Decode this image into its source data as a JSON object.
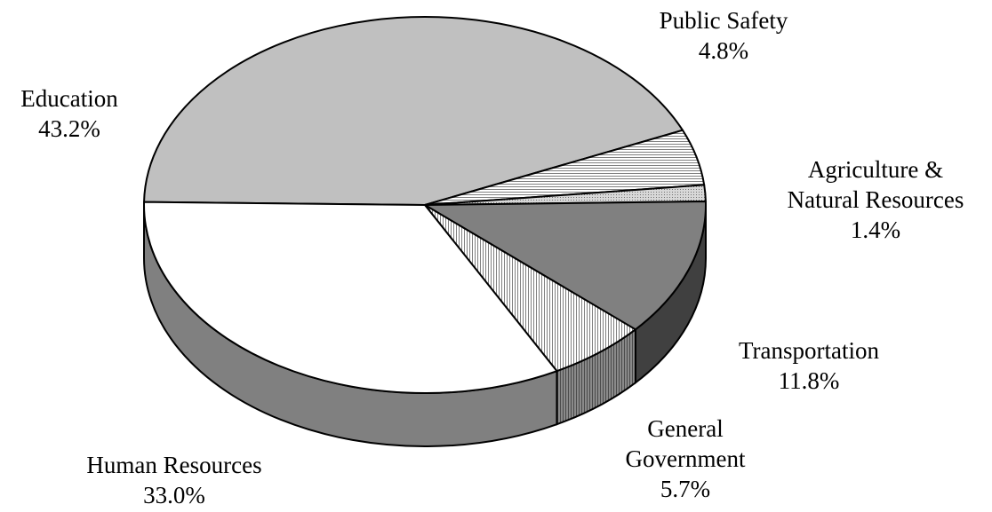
{
  "chart_data": {
    "type": "pie",
    "title": "",
    "three_d": true,
    "slices": [
      {
        "name": "Education",
        "value": 43.2,
        "label": "43.2%",
        "label_lines": [
          "Education",
          "43.2%"
        ],
        "fill": "#c0c0c0",
        "pattern": "solid"
      },
      {
        "name": "Public Safety",
        "value": 4.8,
        "label": "4.8%",
        "label_lines": [
          "Public Safety",
          "4.8%"
        ],
        "fill": "#ffffff",
        "pattern": "horizontal-lines"
      },
      {
        "name": "Agriculture & Natural Resources",
        "value": 1.4,
        "label": "1.4%",
        "label_lines": [
          "Agriculture &",
          "Natural Resources",
          "1.4%"
        ],
        "fill": "#d0d0d0",
        "pattern": "dots"
      },
      {
        "name": "Transportation",
        "value": 11.8,
        "label": "11.8%",
        "label_lines": [
          "Transportation",
          "11.8%"
        ],
        "fill": "#808080",
        "pattern": "solid"
      },
      {
        "name": "General Government",
        "value": 5.7,
        "label": "5.7%",
        "label_lines": [
          "General",
          "Government",
          "5.7%"
        ],
        "fill": "#ffffff",
        "pattern": "vertical-lines"
      },
      {
        "name": "Human Resources",
        "value": 33.0,
        "label": "33.0%",
        "label_lines": [
          "Human Resources",
          "33.0%"
        ],
        "fill": "#ffffff",
        "pattern": "solid"
      }
    ],
    "legend": "none"
  }
}
